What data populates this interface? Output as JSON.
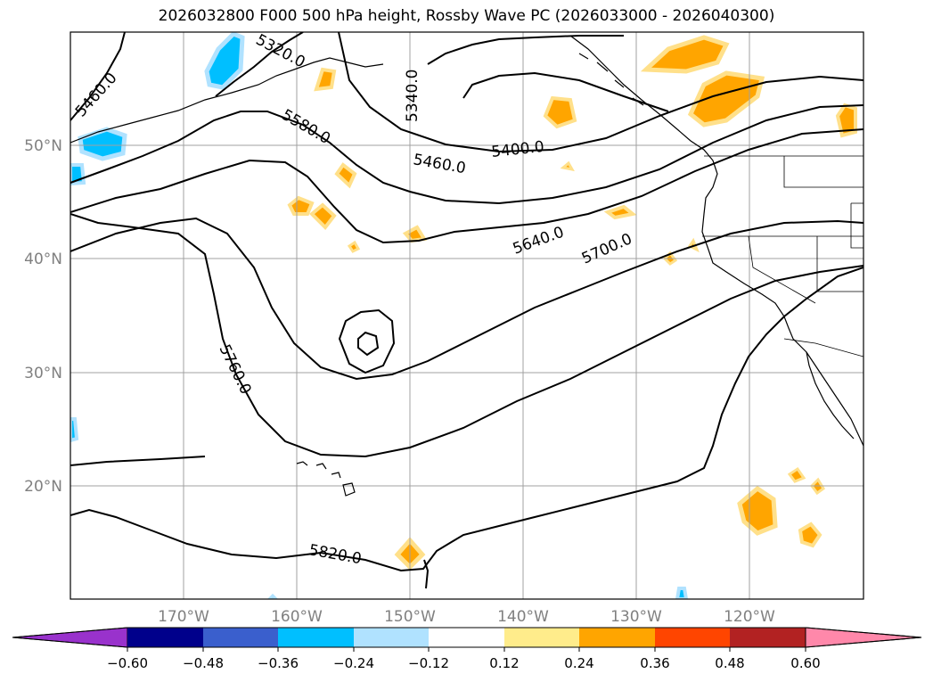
{
  "title": "2026032800 F000 500 hPa height, Rossby Wave PC (2026033000 - 2026040300)",
  "map": {
    "lon_range": [
      -180,
      -110
    ],
    "lat_range": [
      10,
      60
    ],
    "lat_labels": [
      "50°N",
      "40°N",
      "30°N",
      "20°N"
    ],
    "lon_labels": [
      "170°W",
      "160°W",
      "150°W",
      "140°W",
      "130°W",
      "120°W"
    ],
    "contour_labels": [
      "5460.0",
      "5320.0",
      "5340.0",
      "5580.0",
      "5400.0",
      "5460.0",
      "5640.0",
      "5700.0",
      "5760.0",
      "5820.0"
    ],
    "gridline_color": "#a0a0a0",
    "positive_fill": "#ffa500",
    "negative_fill": "#00bfff"
  },
  "colorbar": {
    "ticks": [
      "−0.60",
      "−0.48",
      "−0.36",
      "−0.24",
      "−0.12",
      "0.12",
      "0.24",
      "0.36",
      "0.48",
      "0.60"
    ],
    "colors": [
      "#9932cc",
      "#00008b",
      "#3a5fcd",
      "#00bfff",
      "#b0e2ff",
      "#ffffff",
      "#ffec8b",
      "#ffa500",
      "#ff4500",
      "#b22222",
      "#ff88aa"
    ]
  }
}
